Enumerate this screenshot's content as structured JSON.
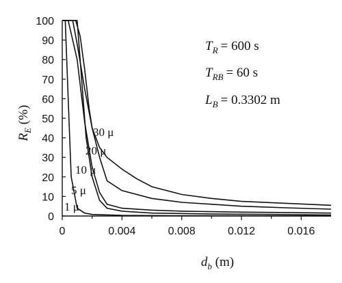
{
  "chart_data": {
    "type": "line",
    "xlabel": "d_b (m)",
    "ylabel": "R_E (%)",
    "xlim": [
      0,
      0.018
    ],
    "ylim": [
      0,
      100
    ],
    "xticks": [
      0,
      0.004,
      0.008,
      0.012,
      0.016
    ],
    "xtick_labels": [
      "0",
      "0.004",
      "0.008",
      "0.012",
      "0.016"
    ],
    "yticks": [
      0,
      10,
      20,
      30,
      40,
      50,
      60,
      70,
      80,
      90,
      100
    ],
    "ytick_labels": [
      "0",
      "10",
      "20",
      "30",
      "40",
      "50",
      "60",
      "70",
      "80",
      "90",
      "100"
    ],
    "grid": false,
    "annotations": [
      {
        "lhs": "T",
        "sub": "R",
        "rhs": "= 600 s"
      },
      {
        "lhs": "T",
        "sub": "RB",
        "rhs": "= 60 s"
      },
      {
        "lhs": "L",
        "sub": "B",
        "rhs": "= 0.3302 m"
      }
    ],
    "series": [
      {
        "name": "1 μ",
        "x": [
          0,
          0.0002,
          0.0004,
          0.0006,
          0.001,
          0.0015,
          0.002,
          0.004,
          0.008,
          0.012,
          0.018
        ],
        "y": [
          100,
          100,
          60,
          20,
          4,
          1.5,
          0.8,
          0.3,
          0.15,
          0.1,
          0.05
        ]
      },
      {
        "name": "5 μ",
        "x": [
          0,
          0.001,
          0.0016,
          0.002,
          0.0025,
          0.003,
          0.004,
          0.006,
          0.01,
          0.014,
          0.018
        ],
        "y": [
          100,
          100,
          40,
          20,
          8,
          4,
          2.5,
          1.5,
          1.0,
          0.8,
          0.5
        ]
      },
      {
        "name": "10 μ",
        "x": [
          0,
          0.0004,
          0.001,
          0.0015,
          0.002,
          0.0025,
          0.003,
          0.004,
          0.006,
          0.008,
          0.012,
          0.018
        ],
        "y": [
          100,
          100,
          80,
          48,
          25,
          12,
          6,
          4,
          3,
          2.5,
          2,
          1.5
        ]
      },
      {
        "name": "20 μ",
        "x": [
          0,
          0.0007,
          0.001,
          0.0015,
          0.002,
          0.0025,
          0.003,
          0.004,
          0.006,
          0.008,
          0.01,
          0.012,
          0.015,
          0.018
        ],
        "y": [
          100,
          100,
          88,
          65,
          45,
          30,
          18,
          13,
          9,
          7,
          6,
          5,
          4.2,
          3.5
        ]
      },
      {
        "name": "30 μ",
        "x": [
          0,
          0.0009,
          0.0012,
          0.0015,
          0.0018,
          0.002,
          0.0025,
          0.003,
          0.004,
          0.005,
          0.006,
          0.008,
          0.01,
          0.012,
          0.015,
          0.018
        ],
        "y": [
          100,
          100,
          92,
          75,
          55,
          45,
          35,
          30,
          24,
          19,
          15,
          11,
          9,
          7.5,
          6.5,
          5.5
        ]
      }
    ]
  }
}
